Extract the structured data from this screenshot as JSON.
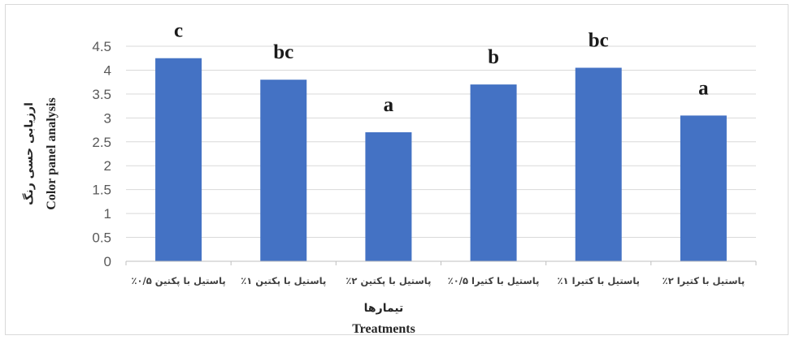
{
  "chart_data": {
    "type": "bar",
    "categories": [
      "پاستیل با پکتین ۰/۵٪",
      "پاستیل با پکتین ۱٪",
      "پاستیل با پکتین ۲٪",
      "پاستیل با کتیرا ۰/۵٪",
      "پاستیل با کتیرا ۱٪",
      "پاستیل با کتیرا ۲٪"
    ],
    "values": [
      4.25,
      3.8,
      2.7,
      3.7,
      4.05,
      3.05
    ],
    "significance": [
      "c",
      "bc",
      "a",
      "b",
      "bc",
      "a"
    ],
    "ylim": [
      0,
      4.5
    ],
    "yticks": [
      0,
      0.5,
      1,
      1.5,
      2,
      2.5,
      3,
      3.5,
      4,
      4.5
    ],
    "ytick_labels": [
      "0",
      "0.5",
      "1",
      "1.5",
      "2",
      "2.5",
      "3",
      "3.5",
      "4",
      "4.5"
    ],
    "xlabel_fa": "تیمارها",
    "xlabel_en": "Treatments",
    "ylabel_fa": "ارزیابی حسی رنگ",
    "ylabel_en": "Color panel analysis",
    "bar_color": "#4472c4",
    "grid": true,
    "legend": false
  }
}
